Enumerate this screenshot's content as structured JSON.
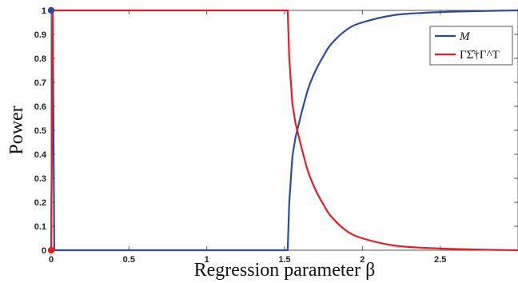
{
  "chart_data": {
    "type": "line",
    "title": "",
    "xlabel": "Regression parameter β",
    "ylabel": "Power",
    "xlim": [
      0,
      3
    ],
    "ylim": [
      0,
      1
    ],
    "xticks": [
      0,
      0.5,
      1,
      1.5,
      2,
      2.5
    ],
    "xtick_labels": [
      "0",
      "0.5",
      "1",
      "1.5",
      "2",
      "2.5"
    ],
    "yticks": [
      0,
      0.1,
      0.2,
      0.3,
      0.4,
      0.5,
      0.6,
      0.7,
      0.8,
      0.9,
      1
    ],
    "ytick_labels": [
      "0",
      "0.1",
      "0.2",
      "0.3",
      "0.4",
      "0.5",
      "0.6",
      "0.7",
      "0.8",
      "0.9",
      "1"
    ],
    "grid": false,
    "legend_position": "top-right",
    "series": [
      {
        "name": "M",
        "color": "#2e4a9e",
        "x": [
          0,
          0.01,
          0.02,
          0.05,
          1.5,
          1.52,
          1.53,
          1.55,
          1.57,
          1.6,
          1.65,
          1.7,
          1.75,
          1.8,
          1.9,
          2.0,
          2.2,
          2.4,
          2.6,
          2.8,
          3.0
        ],
        "y": [
          0,
          1,
          0,
          0,
          0,
          0,
          0.2,
          0.39,
          0.47,
          0.55,
          0.67,
          0.75,
          0.81,
          0.86,
          0.92,
          0.95,
          0.98,
          0.99,
          0.995,
          0.998,
          1
        ]
      },
      {
        "name": "ΓΣ̂†Γ^T",
        "color": "#e41e26",
        "x": [
          0,
          0.01,
          0.02,
          0.05,
          1.5,
          1.52,
          1.53,
          1.55,
          1.57,
          1.6,
          1.65,
          1.7,
          1.75,
          1.8,
          1.9,
          2.0,
          2.2,
          2.4,
          2.6,
          2.8,
          3.0
        ],
        "y": [
          0,
          1,
          1,
          1,
          1,
          1,
          0.8,
          0.61,
          0.53,
          0.45,
          0.33,
          0.25,
          0.19,
          0.14,
          0.08,
          0.05,
          0.02,
          0.01,
          0.005,
          0.002,
          0
        ]
      }
    ],
    "markers": [
      {
        "series": "M",
        "x": 0,
        "y": 1,
        "color": "#2e4a9e"
      },
      {
        "series": "ΓΣ̂†Γ^T",
        "x": 0,
        "y": 0,
        "color": "#e41e26"
      }
    ]
  }
}
